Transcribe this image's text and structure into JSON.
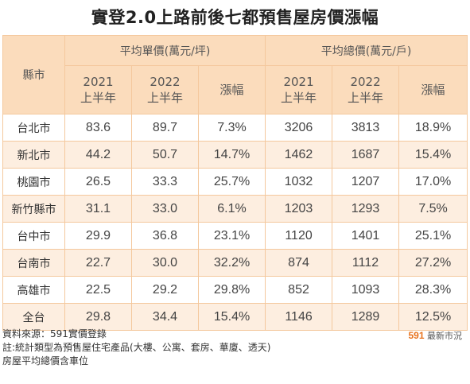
{
  "title": "實登2.0上路前後七都預售屋房價漲幅",
  "table": {
    "city_header": "縣市",
    "groups": [
      {
        "label": "平均單價(萬元/坪)"
      },
      {
        "label": "平均總價(萬元/戶)"
      }
    ],
    "subheaders": [
      {
        "line1": "2021",
        "line2": "上半年"
      },
      {
        "line1": "2022",
        "line2": "上半年"
      },
      {
        "line1": "漲幅",
        "line2": ""
      },
      {
        "line1": "2021",
        "line2": "上半年"
      },
      {
        "line1": "2022",
        "line2": "上半年"
      },
      {
        "line1": "漲幅",
        "line2": ""
      }
    ],
    "rows": [
      {
        "city": "台北市",
        "values": [
          "83.6",
          "89.7",
          "7.3%",
          "3206",
          "3813",
          "18.9%"
        ]
      },
      {
        "city": "新北市",
        "values": [
          "44.2",
          "50.7",
          "14.7%",
          "1462",
          "1687",
          "15.4%"
        ]
      },
      {
        "city": "桃園市",
        "values": [
          "26.5",
          "33.3",
          "25.7%",
          "1032",
          "1207",
          "17.0%"
        ]
      },
      {
        "city": "新竹縣市",
        "values": [
          "31.1",
          "33.0",
          "6.1%",
          "1203",
          "1293",
          "7.5%"
        ]
      },
      {
        "city": "台中市",
        "values": [
          "29.9",
          "36.8",
          "23.1%",
          "1120",
          "1401",
          "25.1%"
        ]
      },
      {
        "city": "台南市",
        "values": [
          "22.7",
          "30.0",
          "32.2%",
          "874",
          "1112",
          "27.2%"
        ]
      },
      {
        "city": "高雄市",
        "values": [
          "22.5",
          "29.2",
          "29.8%",
          "852",
          "1093",
          "28.3%"
        ]
      },
      {
        "city": "全台",
        "values": [
          "29.8",
          "34.4",
          "15.4%",
          "1146",
          "1289",
          "12.5%"
        ]
      }
    ]
  },
  "notes": [
    "資料來源：591實價登錄",
    "註:統計類型為預售屋住宅產品(大樓、公寓、套房、華廈、透天)",
    "房屋平均總價含車位"
  ],
  "brand": {
    "number": "591",
    "text": "最新市況"
  },
  "colors": {
    "header_bg": "#fbdcbc",
    "stripe_bg": "#fdeee0",
    "border": "#f4c89d",
    "brand": "#e8731e"
  }
}
